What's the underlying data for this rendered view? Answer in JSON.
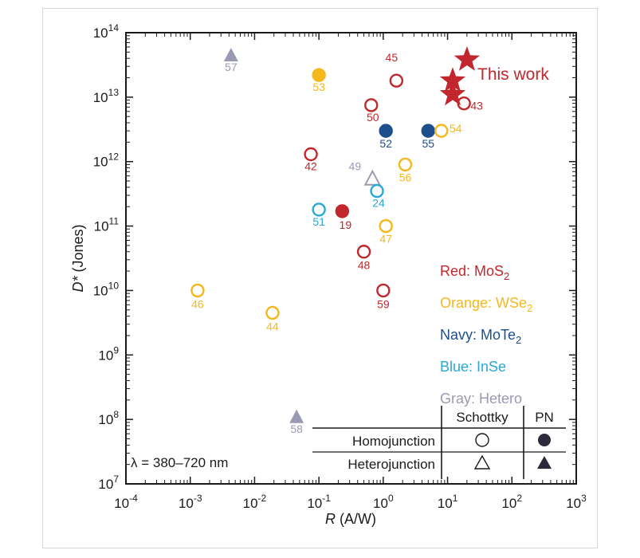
{
  "chart_data": {
    "type": "scatter",
    "xlabel_var": "R",
    "xlabel_unit": " (A/W)",
    "ylabel_var": "D*",
    "ylabel_unit": " (Jones)",
    "x_log": true,
    "y_log": true,
    "xlim_exp": [
      -4,
      3
    ],
    "ylim_exp": [
      7,
      14
    ],
    "x_ticks": [
      {
        "base": "10",
        "exp": "-4"
      },
      {
        "base": "10",
        "exp": "-3"
      },
      {
        "base": "10",
        "exp": "-2"
      },
      {
        "base": "10",
        "exp": "-1"
      },
      {
        "base": "10",
        "exp": "0"
      },
      {
        "base": "10",
        "exp": "1"
      },
      {
        "base": "10",
        "exp": "2"
      },
      {
        "base": "10",
        "exp": "3"
      }
    ],
    "y_ticks": [
      {
        "base": "10",
        "exp": "7"
      },
      {
        "base": "10",
        "exp": "8"
      },
      {
        "base": "10",
        "exp": "9"
      },
      {
        "base": "10",
        "exp": "10"
      },
      {
        "base": "10",
        "exp": "11"
      },
      {
        "base": "10",
        "exp": "12"
      },
      {
        "base": "10",
        "exp": "13"
      },
      {
        "base": "10",
        "exp": "14"
      }
    ],
    "colors": {
      "MoS2": "#c1272d",
      "WSe2": "#f5b81c",
      "MoTe2": "#1f4e8c",
      "InSe": "#29a8d6",
      "Hetero": "#9a9ab2",
      "ThisWork": "#c1272d",
      "text": "#1a1a1a"
    },
    "points": [
      {
        "ref": "57",
        "x": 0.0043,
        "y": 45000000000000.0,
        "material": "Hetero",
        "marker": "triangle",
        "filled": true
      },
      {
        "ref": "53",
        "x": 0.1,
        "y": 22000000000000.0,
        "material": "WSe2",
        "marker": "circle",
        "filled": true
      },
      {
        "ref": "45",
        "x": 1.6,
        "y": 18000000000000.0,
        "material": "MoS2",
        "marker": "circle",
        "filled": false
      },
      {
        "ref": "50",
        "x": 0.65,
        "y": 7500000000000.0,
        "material": "MoS2",
        "marker": "circle",
        "filled": false
      },
      {
        "ref": "43",
        "x": 18,
        "y": 8000000000000.0,
        "material": "MoS2",
        "marker": "circle",
        "filled": false
      },
      {
        "ref": "52",
        "x": 1.1,
        "y": 3000000000000.0,
        "material": "MoTe2",
        "marker": "circle",
        "filled": true
      },
      {
        "ref": "55",
        "x": 5,
        "y": 3000000000000.0,
        "material": "MoTe2",
        "marker": "circle",
        "filled": true
      },
      {
        "ref": "54",
        "x": 8,
        "y": 3000000000000.0,
        "material": "WSe2",
        "marker": "circle",
        "filled": false
      },
      {
        "ref": "42",
        "x": 0.075,
        "y": 1300000000000.0,
        "material": "MoS2",
        "marker": "circle",
        "filled": false
      },
      {
        "ref": "56",
        "x": 2.2,
        "y": 900000000000.0,
        "material": "WSe2",
        "marker": "circle",
        "filled": false
      },
      {
        "ref": "49",
        "x": 0.68,
        "y": 550000000000.0,
        "material": "Hetero",
        "marker": "triangle",
        "filled": false
      },
      {
        "ref": "24",
        "x": 0.8,
        "y": 350000000000.0,
        "material": "InSe",
        "marker": "circle",
        "filled": false
      },
      {
        "ref": "51",
        "x": 0.1,
        "y": 180000000000.0,
        "material": "InSe",
        "marker": "circle",
        "filled": false
      },
      {
        "ref": "19",
        "x": 0.23,
        "y": 170000000000.0,
        "material": "MoS2",
        "marker": "circle",
        "filled": true
      },
      {
        "ref": "47",
        "x": 1.1,
        "y": 100000000000.0,
        "material": "WSe2",
        "marker": "circle",
        "filled": false
      },
      {
        "ref": "48",
        "x": 0.5,
        "y": 40000000000.0,
        "material": "MoS2",
        "marker": "circle",
        "filled": false
      },
      {
        "ref": "46",
        "x": 0.0013,
        "y": 10000000000.0,
        "material": "WSe2",
        "marker": "circle",
        "filled": false
      },
      {
        "ref": "59",
        "x": 1,
        "y": 10000000000.0,
        "material": "MoS2",
        "marker": "circle",
        "filled": false
      },
      {
        "ref": "44",
        "x": 0.019,
        "y": 4500000000.0,
        "material": "WSe2",
        "marker": "circle",
        "filled": false
      },
      {
        "ref": "58",
        "x": 0.045,
        "y": 110000000.0,
        "material": "Hetero",
        "marker": "triangle",
        "filled": true
      }
    ],
    "this_work": {
      "label": "This work",
      "points": [
        {
          "x": 20,
          "y": 38000000000000.0
        },
        {
          "x": 12,
          "y": 18000000000000.0
        },
        {
          "x": 12,
          "y": 11000000000000.0
        }
      ]
    },
    "color_legend": [
      {
        "name": "Red: MoS",
        "sub": "2",
        "material": "MoS2"
      },
      {
        "name": "Orange: WSe",
        "sub": "2",
        "material": "WSe2"
      },
      {
        "name": "Navy: MoTe",
        "sub": "2",
        "material": "MoTe2"
      },
      {
        "name": "Blue: InSe",
        "sub": "",
        "material": "InSe"
      },
      {
        "name": "Gray: Hetero",
        "sub": "",
        "material": "Hetero"
      }
    ],
    "marker_legend": {
      "col_headers": [
        "Schottky",
        "PN"
      ],
      "rows": [
        "Homojunction",
        "Heterojunction"
      ]
    },
    "annotation": "λ = 380–720 nm"
  }
}
